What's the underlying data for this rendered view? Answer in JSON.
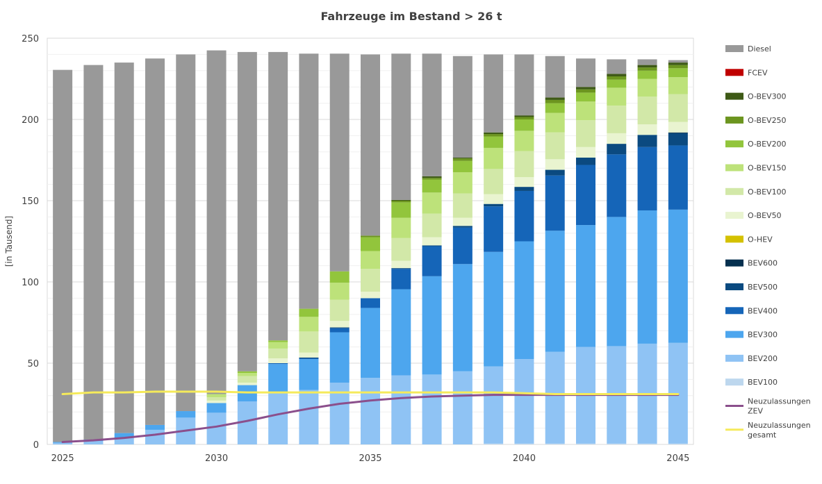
{
  "chart_data": {
    "type": "bar",
    "stacked": true,
    "title": "Fahrzeuge im Bestand > 26 t",
    "ylabel": "[in Tausend]",
    "xlabel": "",
    "ylim": [
      0,
      250
    ],
    "yticks": [
      0,
      50,
      100,
      150,
      200,
      250
    ],
    "xtick_labels": [
      "2025",
      "",
      "",
      "",
      "",
      "2030",
      "",
      "",
      "",
      "",
      "2035",
      "",
      "",
      "",
      "",
      "2040",
      "",
      "",
      "",
      "",
      "2045"
    ],
    "grid": true,
    "legend_position": "right",
    "categories": [
      "2025",
      "2026",
      "2027",
      "2028",
      "2029",
      "2030",
      "2031",
      "2032",
      "2033",
      "2034",
      "2035",
      "2036",
      "2037",
      "2038",
      "2039",
      "2040",
      "2041",
      "2042",
      "2043",
      "2044",
      "2045"
    ],
    "series": [
      {
        "name": "BEV100",
        "color": "#bdd7ee",
        "values": [
          0,
          0,
          0,
          0,
          0,
          0,
          0,
          0,
          0,
          0,
          0,
          0,
          0,
          0,
          0.5,
          0.5,
          0.5,
          0.5,
          0.5,
          0.5,
          0.5
        ]
      },
      {
        "name": "BEV200",
        "color": "#8fc3f4",
        "values": [
          1,
          2,
          4,
          9,
          16.5,
          19.5,
          26.5,
          31.5,
          33.5,
          38,
          41,
          42.5,
          43,
          45,
          47.5,
          52,
          56.5,
          59.5,
          60,
          61.5,
          62
        ]
      },
      {
        "name": "BEV300",
        "color": "#4da6ee",
        "values": [
          0.5,
          1,
          3,
          3,
          4,
          6,
          10,
          18,
          19,
          31,
          43,
          53,
          60.5,
          66,
          70.5,
          72.5,
          74.5,
          75,
          79.5,
          82,
          82
        ]
      },
      {
        "name": "BEV400",
        "color": "#1565b8",
        "values": [
          0,
          0,
          0,
          0,
          0,
          0,
          0,
          0.5,
          0.5,
          2.5,
          6,
          12.5,
          18.5,
          22.5,
          28,
          31,
          34,
          37,
          38.5,
          39,
          39.5
        ]
      },
      {
        "name": "BEV500",
        "color": "#0b4a80",
        "values": [
          0,
          0,
          0,
          0,
          0,
          0,
          0,
          0,
          0.5,
          0.5,
          0,
          0.5,
          0.5,
          1,
          1.5,
          2.5,
          3.5,
          4.5,
          6.5,
          7.5,
          7.5
        ]
      },
      {
        "name": "BEV600",
        "color": "#05304f",
        "values": [
          0,
          0,
          0,
          0,
          0,
          0,
          0,
          0,
          0,
          0,
          0,
          0,
          0,
          0,
          0,
          0,
          0,
          0,
          0,
          0,
          0.5
        ]
      },
      {
        "name": "O-HEV",
        "color": "#d4c100",
        "values": [
          0,
          0,
          0,
          0,
          0,
          0,
          0,
          0,
          0,
          0,
          0,
          0,
          0,
          0,
          0,
          0,
          0,
          0,
          0,
          0,
          0
        ]
      },
      {
        "name": "O-BEV50",
        "color": "#e9f4d0",
        "values": [
          0,
          0,
          0,
          0,
          0,
          1.5,
          1.5,
          3,
          3,
          4,
          4,
          4.5,
          5,
          5,
          6,
          6,
          6.5,
          6.5,
          6.5,
          6.5,
          6.5
        ]
      },
      {
        "name": "O-BEV100",
        "color": "#d2e8a8",
        "values": [
          0,
          0,
          0,
          0,
          0,
          2,
          4,
          6,
          13,
          13,
          14,
          14,
          14.5,
          15,
          15.5,
          16,
          16.5,
          16.5,
          17,
          17,
          17
        ]
      },
      {
        "name": "O-BEV150",
        "color": "#bde27a",
        "values": [
          0,
          0,
          0,
          0,
          0,
          2,
          2,
          4,
          9,
          10.5,
          11,
          12.5,
          13,
          13,
          13,
          12.5,
          12,
          11.5,
          11,
          11,
          10.5
        ]
      },
      {
        "name": "O-BEV200",
        "color": "#92c53c",
        "values": [
          0,
          0,
          0,
          0,
          0,
          0,
          1,
          1,
          5,
          7,
          8.5,
          9.5,
          8,
          7,
          7,
          7,
          6,
          5.5,
          5,
          5,
          5.5
        ]
      },
      {
        "name": "O-BEV250",
        "color": "#6c951f",
        "values": [
          0,
          0,
          0,
          0,
          0,
          0,
          0,
          0,
          0,
          0,
          1,
          1,
          1,
          1.5,
          1.5,
          1.5,
          2,
          2,
          2,
          2,
          2
        ]
      },
      {
        "name": "O-BEV300",
        "color": "#3e5a16",
        "values": [
          0,
          0,
          0,
          0,
          0,
          0,
          0,
          0,
          0,
          0,
          0,
          0.5,
          1,
          0.5,
          1,
          1,
          1.5,
          1.5,
          1.5,
          1.5,
          1.5
        ]
      },
      {
        "name": "FCEV",
        "color": "#c00000",
        "values": [
          0,
          0,
          0,
          0,
          0,
          0,
          0,
          0,
          0,
          0,
          0,
          0,
          0,
          0,
          0,
          0,
          0,
          0,
          0,
          0,
          0
        ]
      },
      {
        "name": "Diesel",
        "color": "#999999",
        "values": [
          229,
          230.5,
          228,
          225.5,
          219.5,
          211.5,
          196.5,
          177.5,
          157,
          134,
          111.5,
          90,
          75.5,
          62.5,
          48,
          37.5,
          25.5,
          17.5,
          9,
          3.5,
          1.5
        ]
      }
    ],
    "lines": [
      {
        "name": "Neuzulassungen\nZEV",
        "label_lines": [
          "Neuzulassungen",
          "ZEV"
        ],
        "color": "#8b4f8c",
        "values": [
          1.5,
          2.5,
          4,
          6,
          8.5,
          11,
          14.5,
          18.5,
          22,
          25,
          27,
          28.5,
          29.5,
          30,
          30.5,
          30.5,
          30.5,
          30.5,
          30.5,
          30.5,
          30.5
        ]
      },
      {
        "name": "Neuzulassungen\ngesamt",
        "label_lines": [
          "Neuzulassungen",
          "gesamt"
        ],
        "color": "#f5ea5a",
        "values": [
          31,
          32,
          32,
          32.5,
          32.5,
          32.5,
          32,
          32,
          32,
          32,
          32,
          32,
          32,
          32,
          32,
          31.5,
          31,
          31,
          31,
          31,
          31
        ]
      }
    ],
    "legend_order": [
      "Diesel",
      "FCEV",
      "O-BEV300",
      "O-BEV250",
      "O-BEV200",
      "O-BEV150",
      "O-BEV100",
      "O-BEV50",
      "O-HEV",
      "BEV600",
      "BEV500",
      "BEV400",
      "BEV300",
      "BEV200",
      "BEV100",
      "Neuzulassungen\nZEV",
      "Neuzulassungen\ngesamt"
    ]
  }
}
